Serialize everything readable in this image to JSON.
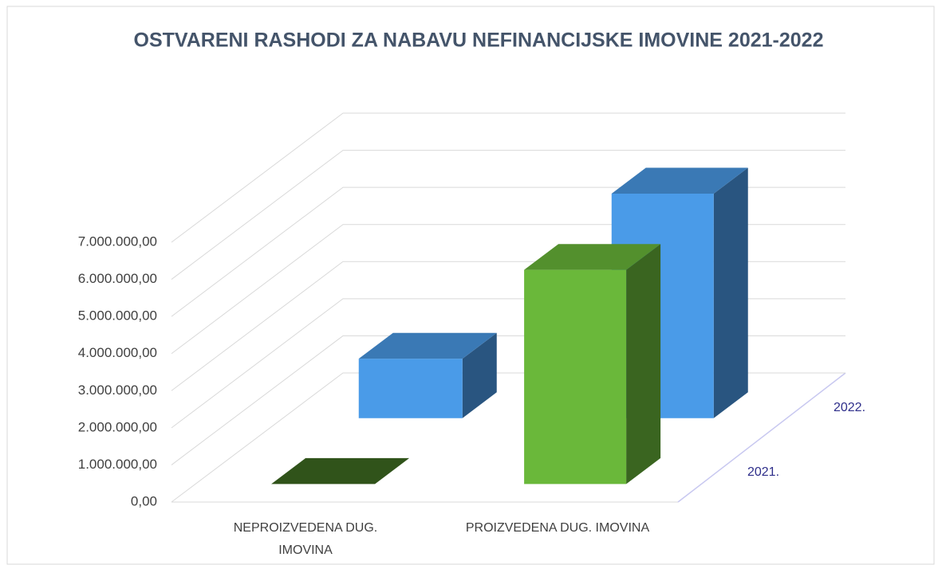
{
  "chart_data": {
    "type": "bar3d",
    "title": "OSTVARENI RASHODI ZA NABAVU NEFINANCIJSKE IMOVINE 2021-2022",
    "categories": [
      [
        "NEPROIZVEDENA DUG.",
        "IMOVINA"
      ],
      [
        "PROIZVEDENA DUG. IMOVINA"
      ]
    ],
    "series": [
      {
        "name": "2021.",
        "color": "#6ab83a",
        "values": [
          0,
          5770000
        ]
      },
      {
        "name": "2022.",
        "color": "#4a9be8",
        "values": [
          1600000,
          6050000
        ]
      }
    ],
    "ylim": [
      0,
      7000000
    ],
    "yticks": [
      {
        "value": 0,
        "label": "0,00"
      },
      {
        "value": 1000000,
        "label": "1.000.000,00"
      },
      {
        "value": 2000000,
        "label": "2.000.000,00"
      },
      {
        "value": 3000000,
        "label": "3.000.000,00"
      },
      {
        "value": 4000000,
        "label": "4.000.000,00"
      },
      {
        "value": 5000000,
        "label": "5.000.000,00"
      },
      {
        "value": 6000000,
        "label": "6.000.000,00"
      },
      {
        "value": 7000000,
        "label": "7.000.000,00"
      }
    ],
    "grid": true
  }
}
